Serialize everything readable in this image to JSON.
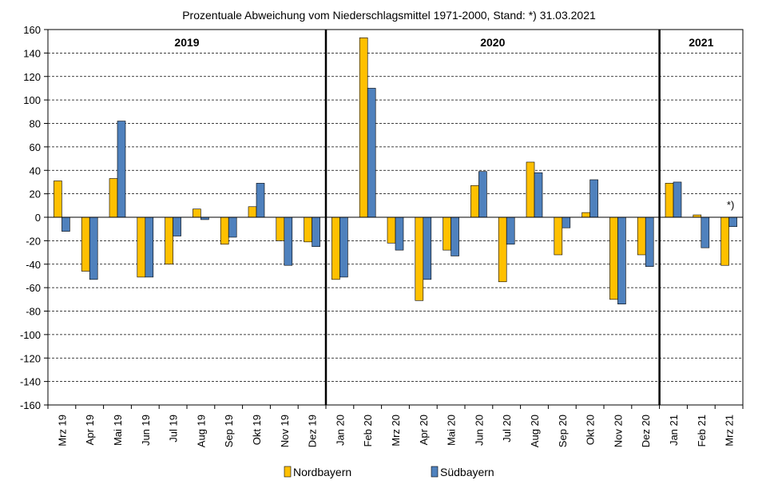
{
  "chart_data": {
    "type": "bar",
    "title": "Prozentuale Abweichung vom Niederschlagsmittel 1971-2000, Stand: *) 31.03.2021",
    "xlabel": "",
    "ylabel": "",
    "ylim": [
      -160,
      160
    ],
    "yticks": [
      160,
      140,
      120,
      100,
      80,
      60,
      40,
      20,
      0,
      -20,
      -40,
      -60,
      -80,
      -100,
      -120,
      -140,
      -160
    ],
    "grid": true,
    "legend_position": "bottom",
    "categories": [
      "Mrz 19",
      "Apr 19",
      "Mai 19",
      "Jun 19",
      "Jul 19",
      "Aug 19",
      "Sep 19",
      "Okt 19",
      "Nov 19",
      "Dez 19",
      "Jan 20",
      "Feb 20",
      "Mrz 20",
      "Apr 20",
      "Mai 20",
      "Jun 20",
      "Jul 20",
      "Aug 20",
      "Sep 20",
      "Okt 20",
      "Nov 20",
      "Dez 20",
      "Jan 21",
      "Feb 21",
      "Mrz 21"
    ],
    "series": [
      {
        "name": "Nordbayern",
        "color": "#FFC000",
        "values": [
          31,
          -46,
          33,
          -51,
          -40,
          7,
          -23,
          9,
          -20,
          -21,
          -53,
          153,
          -22,
          -71,
          -28,
          27,
          -55,
          47,
          -32,
          4,
          -70,
          -32,
          29,
          2,
          -41
        ]
      },
      {
        "name": "Südbayern",
        "color": "#4F81BD",
        "values": [
          -12,
          -53,
          82,
          -51,
          -16,
          -2,
          -17,
          29,
          -41,
          -25,
          -51,
          110,
          -28,
          -53,
          -33,
          39,
          -23,
          38,
          -9,
          32,
          -74,
          -42,
          30,
          -26,
          -8
        ]
      }
    ],
    "year_groups": [
      {
        "label": "2019",
        "start": 0,
        "end": 9
      },
      {
        "label": "2020",
        "start": 10,
        "end": 21
      },
      {
        "label": "2021",
        "start": 22,
        "end": 24
      }
    ],
    "annotations": [
      {
        "text": "*)",
        "category_index": 24
      }
    ]
  }
}
